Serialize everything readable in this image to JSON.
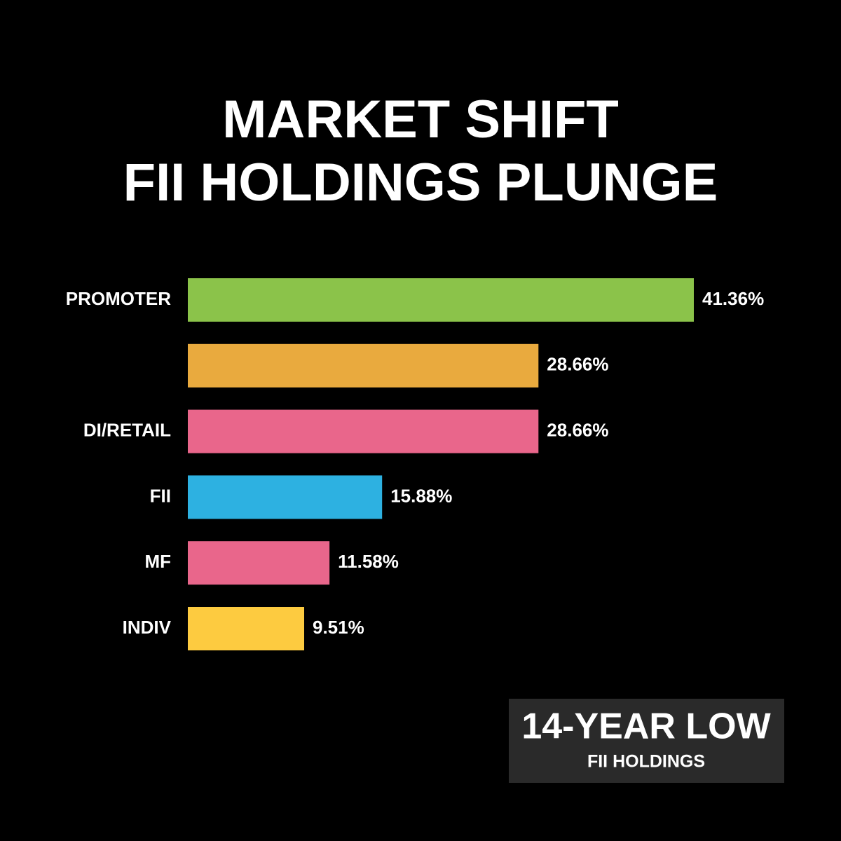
{
  "chart_data": {
    "type": "bar",
    "orientation": "horizontal",
    "title": [
      "MARKET SHIFT",
      "FII HOLDINGS PLUNGE"
    ],
    "categories": [
      "PROMOTER",
      null,
      "DI/RETAIL",
      "FII",
      "MF",
      "INDIV"
    ],
    "values": [
      41.36,
      28.66,
      28.66,
      15.88,
      11.58,
      9.51
    ],
    "value_labels": [
      "41.36%",
      "28.66%",
      "28.66%",
      "15.88%",
      "11.58%",
      "9.51%"
    ],
    "colors": [
      "#8bc34a",
      "#e9aa3e",
      "#e9668b",
      "#2db1e1",
      "#e9668b",
      "#fdcb40"
    ],
    "annotation": {
      "title": "14-YEAR LOW",
      "subtitle": "FII HOLDINGS"
    }
  }
}
